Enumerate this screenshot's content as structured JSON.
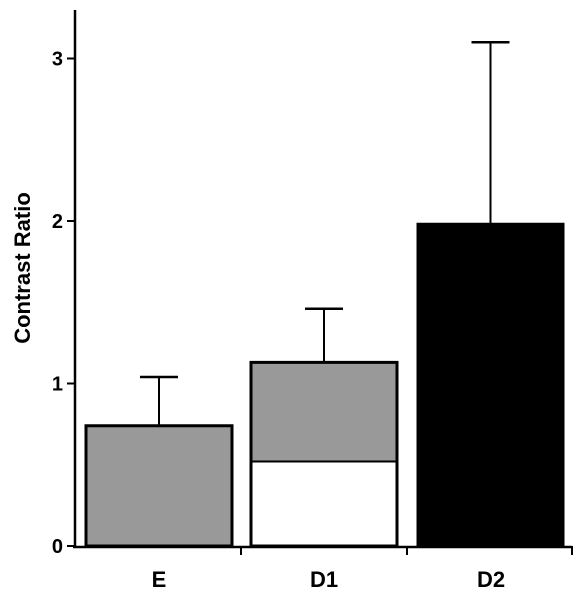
{
  "chart_data": {
    "type": "bar",
    "title": "",
    "xlabel": "",
    "ylabel": "Contrast Ratio",
    "ylim": [
      0,
      3.3
    ],
    "yticks": [
      0,
      1,
      2,
      3
    ],
    "categories": [
      "E",
      "D1",
      "D2"
    ],
    "bars": [
      {
        "category": "E",
        "value": 0.74,
        "error_upper": 1.04,
        "fill": "#999999"
      },
      {
        "category": "D1",
        "value": 1.13,
        "error_upper": 1.46,
        "fill": "#999999",
        "lower_segment": {
          "value": 0.52,
          "fill": "#ffffff"
        }
      },
      {
        "category": "D2",
        "value": 1.98,
        "error_upper": 3.1,
        "fill": "#000000"
      }
    ],
    "grid": false,
    "legend": "none"
  },
  "colors": {
    "axis": "#000000",
    "gray_fill": "#999999",
    "white_fill": "#ffffff",
    "black_fill": "#000000"
  }
}
